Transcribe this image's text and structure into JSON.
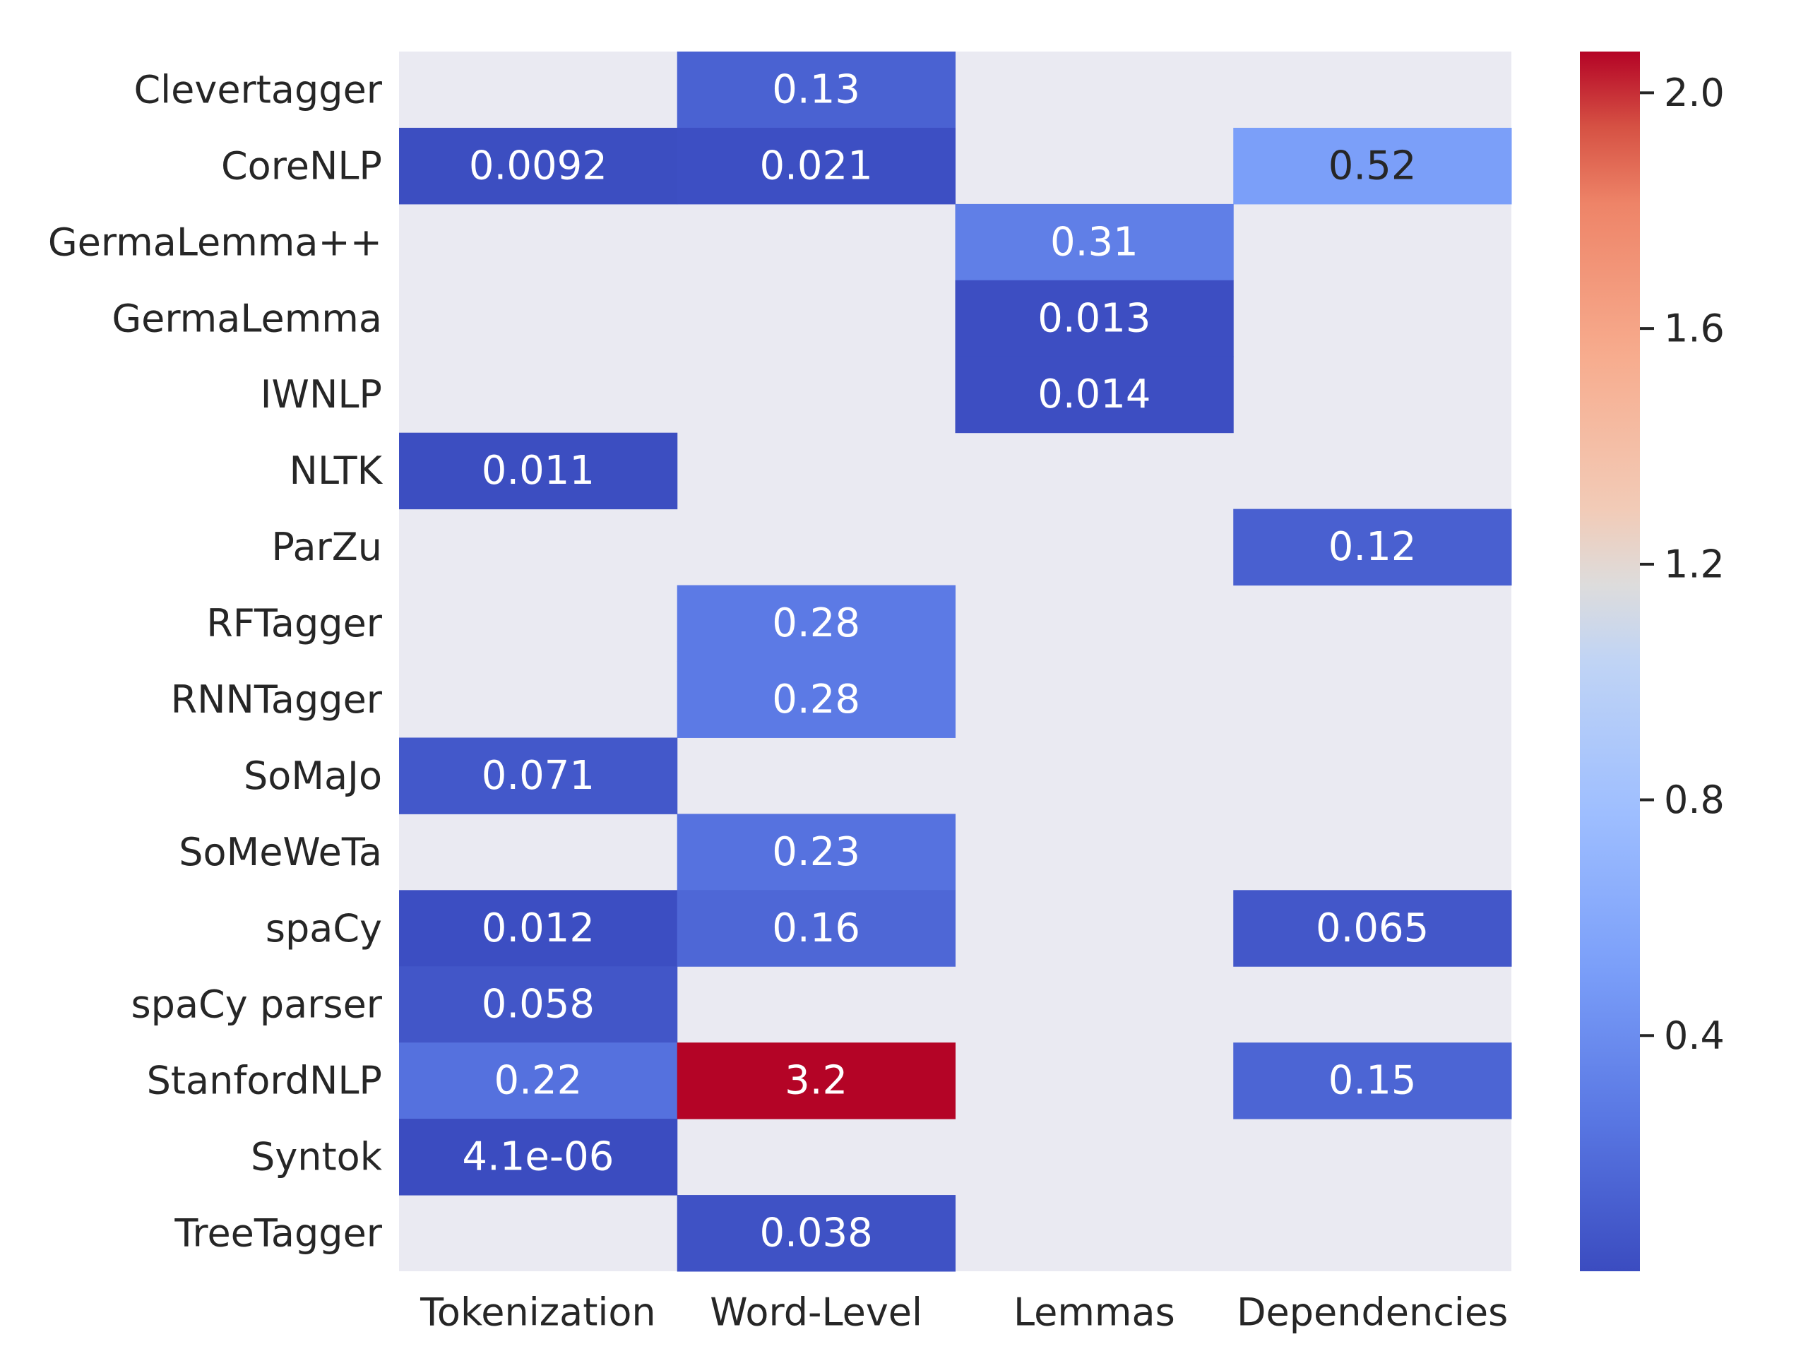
{
  "chart_data": {
    "type": "heatmap",
    "title": "",
    "xlabel": "",
    "ylabel": "",
    "columns": [
      "Tokenization",
      "Word-Level",
      "Lemmas",
      "Dependencies"
    ],
    "rows": [
      "Clevertagger",
      "CoreNLP",
      "GermaLemma++",
      "GermaLemma",
      "IWNLP",
      "NLTK",
      "ParZu",
      "RFTagger",
      "RNNTagger",
      "SoMaJo",
      "SoMeWeTa",
      "spaCy",
      "spaCy parser",
      "StanfordNLP",
      "Syntok",
      "TreeTagger"
    ],
    "values": [
      [
        null,
        0.13,
        null,
        null
      ],
      [
        0.0092,
        0.021,
        null,
        0.52
      ],
      [
        null,
        null,
        0.31,
        null
      ],
      [
        null,
        null,
        0.013,
        null
      ],
      [
        null,
        null,
        0.014,
        null
      ],
      [
        0.011,
        null,
        null,
        null
      ],
      [
        null,
        null,
        null,
        0.12
      ],
      [
        null,
        0.28,
        null,
        null
      ],
      [
        null,
        0.28,
        null,
        null
      ],
      [
        0.071,
        null,
        null,
        null
      ],
      [
        null,
        0.23,
        null,
        null
      ],
      [
        0.012,
        0.16,
        null,
        0.065
      ],
      [
        0.058,
        null,
        null,
        null
      ],
      [
        0.22,
        3.2,
        null,
        0.15
      ],
      [
        4.1e-06,
        null,
        null,
        null
      ],
      [
        null,
        0.038,
        null,
        null
      ]
    ],
    "labels": [
      [
        "",
        "0.13",
        "",
        ""
      ],
      [
        "0.0092",
        "0.021",
        "",
        "0.52"
      ],
      [
        "",
        "",
        "0.31",
        ""
      ],
      [
        "",
        "",
        "0.013",
        ""
      ],
      [
        "",
        "",
        "0.014",
        ""
      ],
      [
        "0.011",
        "",
        "",
        ""
      ],
      [
        "",
        "",
        "",
        "0.12"
      ],
      [
        "",
        "0.28",
        "",
        ""
      ],
      [
        "",
        "0.28",
        "",
        ""
      ],
      [
        "0.071",
        "",
        "",
        ""
      ],
      [
        "",
        "0.23",
        "",
        ""
      ],
      [
        "0.012",
        "0.16",
        "",
        "0.065"
      ],
      [
        "0.058",
        "",
        "",
        ""
      ],
      [
        "0.22",
        "3.2",
        "",
        "0.15"
      ],
      [
        "4.1e-06",
        "",
        "",
        ""
      ],
      [
        "",
        "0.038",
        "",
        ""
      ]
    ],
    "colormap": "coolwarm",
    "vmin": 0.0,
    "vmax": 2.07,
    "colorbar_ticks": [
      0.4,
      0.8,
      1.2,
      1.6,
      2.0
    ],
    "colorbar_tick_labels": [
      "0.4",
      "0.8",
      "1.2",
      "1.6",
      "2.0"
    ],
    "missing_color": "#eaeaf2",
    "grid": false
  }
}
